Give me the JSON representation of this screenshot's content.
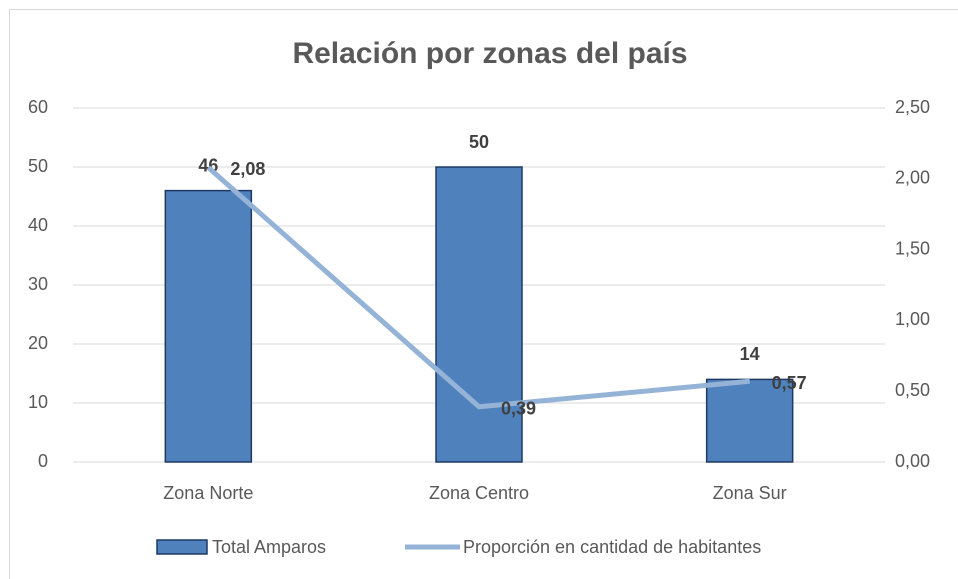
{
  "chart_data": {
    "type": "bar",
    "title": "Relación por zonas del país",
    "categories": [
      "Zona Norte",
      "Zona Centro",
      "Zona Sur"
    ],
    "series": [
      {
        "name": "Total Amparos",
        "type": "bar",
        "color": "#4f81bd",
        "values": [
          46,
          50,
          14
        ]
      },
      {
        "name": "Proporción en cantidad de habitantes",
        "type": "line",
        "axis": "y2",
        "color": "#95b3d7",
        "values": [
          2.08,
          0.39,
          0.57
        ],
        "value_labels": [
          "2,08",
          "0,39",
          "0,57"
        ]
      }
    ],
    "ylim": [
      0,
      60
    ],
    "yticks": [
      0,
      10,
      20,
      30,
      40,
      50,
      60
    ],
    "y2lim": [
      0,
      2.5
    ],
    "y2ticks": [
      {
        "value": 0,
        "label": "0,00"
      },
      {
        "value": 0.5,
        "label": "0,50"
      },
      {
        "value": 1,
        "label": "1,00"
      },
      {
        "value": 1.5,
        "label": "1,50"
      },
      {
        "value": 2,
        "label": "2,00"
      },
      {
        "value": 2.5,
        "label": "2,50"
      }
    ],
    "grid": true,
    "legend": "bottom"
  }
}
